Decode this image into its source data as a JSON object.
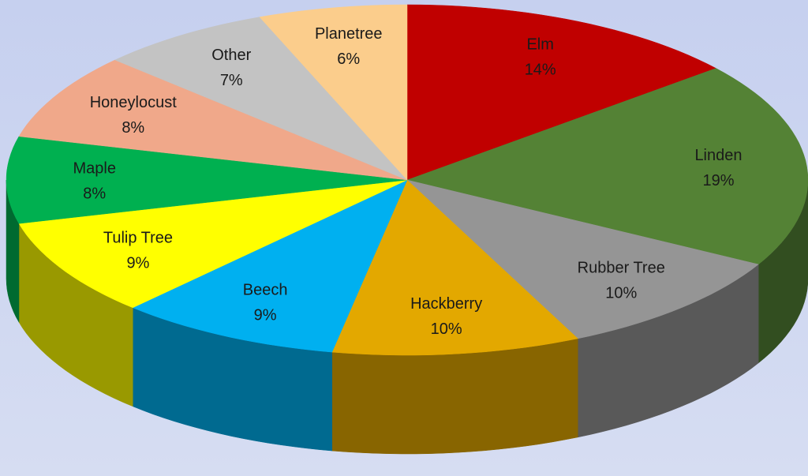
{
  "chart_data": {
    "type": "pie3d",
    "categories": [
      "Elm",
      "Linden",
      "Rubber Tree",
      "Hackberry",
      "Beech",
      "Tulip Tree",
      "Maple",
      "Honeylocust",
      "Other",
      "Planetree"
    ],
    "values": [
      14,
      19,
      10,
      10,
      9,
      9,
      8,
      8,
      7,
      6
    ],
    "value_labels": [
      "14%",
      "19%",
      "10%",
      "10%",
      "9%",
      "9%",
      "8%",
      "8%",
      "7%",
      "6%"
    ],
    "colors": [
      "#c00000",
      "#548235",
      "#959595",
      "#e3a800",
      "#00b0f0",
      "#ffff00",
      "#00b050",
      "#f0a88a",
      "#c3c3c3",
      "#fbcd8c"
    ]
  }
}
